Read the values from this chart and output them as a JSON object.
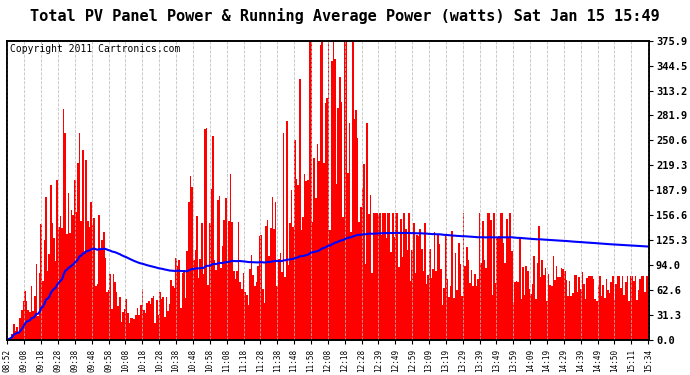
{
  "title": "Total PV Panel Power & Running Average Power (watts) Sat Jan 15 15:49",
  "copyright": "Copyright 2011 Cartronics.com",
  "ylabel_right_ticks": [
    0.0,
    31.3,
    62.6,
    94.0,
    125.3,
    156.6,
    187.9,
    219.3,
    250.6,
    281.9,
    313.2,
    344.5,
    375.9
  ],
  "ymax": 375.9,
  "ymin": 0.0,
  "bar_color": "#FF0000",
  "line_color": "#0000FF",
  "background_color": "#FFFFFF",
  "grid_color": "#BBBBBB",
  "x_labels": [
    "08:52",
    "09:08",
    "09:18",
    "09:28",
    "09:38",
    "09:48",
    "09:58",
    "10:08",
    "10:18",
    "10:28",
    "10:38",
    "10:48",
    "10:58",
    "11:08",
    "11:18",
    "11:28",
    "11:38",
    "11:48",
    "11:58",
    "12:08",
    "12:18",
    "12:28",
    "12:39",
    "12:49",
    "12:59",
    "13:09",
    "13:19",
    "13:29",
    "13:39",
    "13:49",
    "13:59",
    "14:09",
    "14:19",
    "14:29",
    "14:39",
    "14:49",
    "14:50",
    "15:11",
    "15:34"
  ],
  "title_fontsize": 11,
  "copyright_fontsize": 7,
  "n_points": 400
}
